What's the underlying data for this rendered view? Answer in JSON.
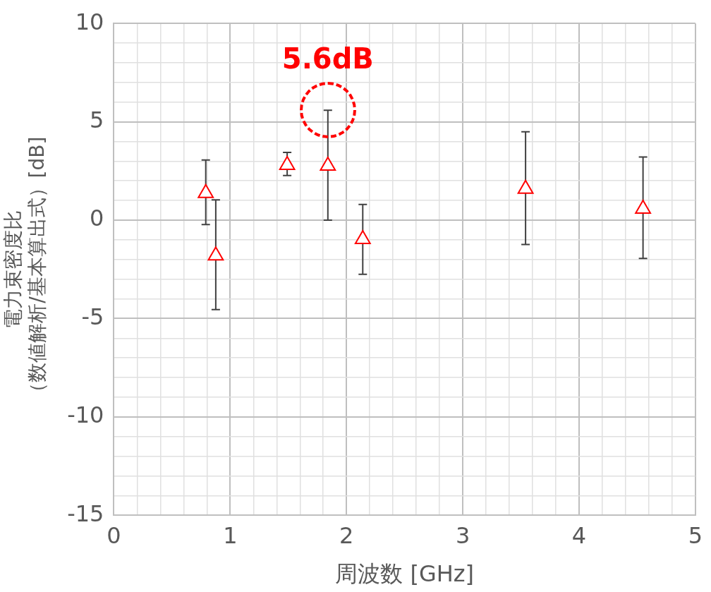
{
  "chart_data": {
    "type": "scatter",
    "xlabel": "周波数 [GHz]",
    "ylabel": "電力束密度比（数値解析/基本算出式）[dB]",
    "x": [
      0.79,
      0.876,
      1.49,
      1.84,
      2.14,
      3.54,
      4.55
    ],
    "series": [
      {
        "color": "#ff0000",
        "values": [
          1.37,
          -1.8,
          2.8,
          2.76,
          -0.97,
          1.59,
          0.57
        ],
        "errors": [
          [
            -0.22,
            3.06
          ],
          [
            -4.55,
            1.03
          ],
          [
            2.27,
            3.44
          ],
          [
            0,
            5.59
          ],
          [
            -2.75,
            0.8
          ],
          [
            -1.24,
            4.49
          ],
          [
            -1.95,
            3.21
          ]
        ]
      }
    ],
    "marker": "triangle",
    "grid": true,
    "legend": false,
    "xlim": [
      0,
      5
    ],
    "ylim": [
      -15,
      10
    ],
    "xticks": [
      0,
      {
        "value": 0.2,
        "label": null
      },
      {
        "value": 0.4,
        "label": null
      },
      {
        "value": 0.6,
        "label": null
      },
      {
        "value": 0.8,
        "label": null
      },
      1,
      {
        "value": 1.2,
        "label": null
      },
      {
        "value": 1.4,
        "label": null
      },
      {
        "value": 1.6,
        "label": null
      },
      {
        "value": 1.8,
        "label": null
      },
      2,
      {
        "value": 2.2,
        "label": null
      },
      {
        "value": 2.4,
        "label": null
      },
      {
        "value": 2.6,
        "label": null
      },
      {
        "value": 2.8,
        "label": null
      },
      3,
      {
        "value": 3.2,
        "label": null
      },
      {
        "value": 3.4,
        "label": null
      },
      {
        "value": 3.6,
        "label": null
      },
      {
        "value": 3.8,
        "label": null
      },
      4,
      {
        "value": 4.2,
        "label": null
      },
      {
        "value": 4.4,
        "label": null
      },
      {
        "value": 4.6,
        "label": null
      },
      {
        "value": 4.8,
        "label": null
      },
      5
    ],
    "yticks": [
      -15,
      {
        "value": -14,
        "label": null
      },
      {
        "value": -13,
        "label": null
      },
      {
        "value": -12,
        "label": null
      },
      {
        "value": -11,
        "label": null
      },
      -10,
      {
        "value": -9,
        "label": null
      },
      {
        "value": -8,
        "label": null
      },
      {
        "value": -7,
        "label": null
      },
      {
        "value": -6,
        "label": null
      },
      -5,
      {
        "value": -4,
        "label": null
      },
      {
        "value": -3,
        "label": null
      },
      {
        "value": -2,
        "label": null
      },
      {
        "value": -1,
        "label": null
      },
      0,
      {
        "value": 1,
        "label": null
      },
      {
        "value": 2,
        "label": null
      },
      {
        "value": 3,
        "label": null
      },
      {
        "value": 4,
        "label": null
      },
      5,
      {
        "value": 6,
        "label": null
      },
      {
        "value": 7,
        "label": null
      },
      {
        "value": 8,
        "label": null
      },
      {
        "value": 9,
        "label": null
      },
      10
    ],
    "annotations": [
      {
        "text": "5.6dB",
        "x": 1.84,
        "y": 5.59
      }
    ]
  }
}
